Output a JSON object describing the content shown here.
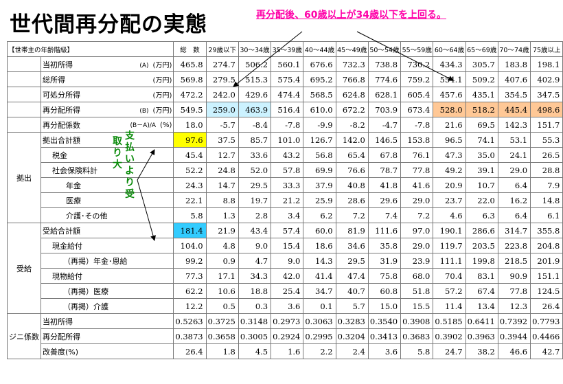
{
  "title": "世代間再分配の実態",
  "note": "再分配後、60歳以上が34歳以下を上回る。",
  "annotation_pay": "支払いより受",
  "annotation_large": "取り大",
  "header": {
    "label": "【世帯主の年齢階級】",
    "total": "総　数",
    "ages": [
      "29歳以下",
      "30～34歳",
      "35～39歳",
      "40～44歳",
      "45～49歳",
      "50～54歳",
      "55～59歳",
      "60～64歳",
      "65～69歳",
      "70～74歳",
      "75歳以上"
    ]
  },
  "sections": {
    "kyoshutsu": "拠出",
    "jukyu": "受給",
    "gini": "ジニ係数"
  },
  "rows": [
    {
      "label": "当初所得",
      "mark": "(A)",
      "unit": "(万円)",
      "total": "465.8",
      "values": [
        "274.7",
        "506.2",
        "560.1",
        "676.6",
        "732.3",
        "738.8",
        "730.2",
        "434.3",
        "305.7",
        "183.8",
        "198.1"
      ]
    },
    {
      "label": "総所得",
      "mark": "",
      "unit": "(万円)",
      "total": "569.8",
      "values": [
        "279.5",
        "515.3",
        "575.4",
        "695.2",
        "766.8",
        "774.6",
        "759.2",
        "554.1",
        "509.2",
        "407.6",
        "402.9"
      ]
    },
    {
      "label": "可処分所得",
      "mark": "",
      "unit": "(万円)",
      "total": "472.2",
      "values": [
        "242.0",
        "429.6",
        "474.4",
        "568.5",
        "624.8",
        "628.1",
        "605.4",
        "457.6",
        "435.1",
        "354.5",
        "347.5"
      ]
    },
    {
      "label": "再分配所得",
      "mark": "(B)",
      "unit": "(万円)",
      "total": "549.5",
      "values": [
        "259.0",
        "463.9",
        "516.4",
        "610.0",
        "672.2",
        "703.9",
        "673.4",
        "528.0",
        "518.2",
        "445.4",
        "498.6"
      ]
    },
    {
      "label": "再分配係数",
      "mark": "(B－A)/A",
      "unit": "(%)",
      "total": "18.0",
      "values": [
        "-5.7",
        "-8.4",
        "-7.8",
        "-9.9",
        "-8.2",
        "-4.7",
        "-7.8",
        "21.6",
        "69.5",
        "142.3",
        "151.7"
      ]
    },
    {
      "label": "拠出合計額",
      "mark": "",
      "unit": "",
      "total": "97.6",
      "values": [
        "37.5",
        "85.7",
        "101.0",
        "126.7",
        "142.0",
        "146.5",
        "153.8",
        "96.5",
        "74.1",
        "53.1",
        "55.3"
      ]
    },
    {
      "label": "税金",
      "mark": "",
      "unit": "",
      "total": "45.4",
      "values": [
        "12.7",
        "33.6",
        "43.2",
        "56.8",
        "65.4",
        "67.8",
        "76.1",
        "47.3",
        "35.0",
        "24.1",
        "26.5"
      ]
    },
    {
      "label": "社会保険料計",
      "mark": "",
      "unit": "",
      "total": "52.2",
      "values": [
        "24.8",
        "52.0",
        "57.8",
        "69.9",
        "76.6",
        "78.7",
        "77.8",
        "49.2",
        "39.1",
        "29.0",
        "28.8"
      ]
    },
    {
      "label": "年金",
      "mark": "",
      "unit": "",
      "total": "24.3",
      "values": [
        "14.7",
        "29.5",
        "33.3",
        "37.9",
        "40.8",
        "41.8",
        "41.6",
        "20.9",
        "10.7",
        "6.4",
        "7.9"
      ]
    },
    {
      "label": "医療",
      "mark": "",
      "unit": "",
      "total": "22.1",
      "values": [
        "8.8",
        "19.7",
        "21.2",
        "25.9",
        "28.6",
        "29.6",
        "29.0",
        "23.7",
        "22.0",
        "16.2",
        "14.8"
      ]
    },
    {
      "label": "介護･その他",
      "mark": "",
      "unit": "",
      "total": "5.8",
      "values": [
        "1.3",
        "2.8",
        "3.4",
        "6.2",
        "7.2",
        "7.4",
        "7.2",
        "4.6",
        "6.3",
        "6.4",
        "6.1"
      ]
    },
    {
      "label": "受給合計額",
      "mark": "",
      "unit": "",
      "total": "181.4",
      "values": [
        "21.9",
        "43.4",
        "57.4",
        "60.0",
        "81.9",
        "111.6",
        "97.0",
        "190.1",
        "286.6",
        "314.7",
        "355.8"
      ]
    },
    {
      "label": "現金給付",
      "mark": "",
      "unit": "",
      "total": "104.0",
      "values": [
        "4.8",
        "9.0",
        "15.4",
        "18.6",
        "34.6",
        "35.8",
        "29.0",
        "119.7",
        "203.5",
        "223.8",
        "204.8"
      ]
    },
    {
      "label": "（再掲）年金･恩給",
      "mark": "",
      "unit": "",
      "total": "99.2",
      "values": [
        "0.9",
        "4.7",
        "9.0",
        "14.3",
        "29.5",
        "31.9",
        "23.9",
        "111.1",
        "199.8",
        "218.5",
        "201.9"
      ]
    },
    {
      "label": "現物給付",
      "mark": "",
      "unit": "",
      "total": "77.3",
      "values": [
        "17.1",
        "34.3",
        "42.0",
        "41.4",
        "47.4",
        "75.8",
        "68.0",
        "70.4",
        "83.1",
        "90.9",
        "151.1"
      ]
    },
    {
      "label": "（再掲）医療",
      "mark": "",
      "unit": "",
      "total": "62.2",
      "values": [
        "10.6",
        "18.8",
        "25.4",
        "34.7",
        "40.7",
        "60.8",
        "51.8",
        "57.2",
        "67.4",
        "77.8",
        "124.5"
      ]
    },
    {
      "label": "（再掲）介護",
      "mark": "",
      "unit": "",
      "total": "12.2",
      "values": [
        "0.5",
        "0.3",
        "3.6",
        "0.1",
        "5.7",
        "15.0",
        "15.5",
        "11.4",
        "13.4",
        "12.3",
        "26.4"
      ]
    },
    {
      "label": "当初所得",
      "mark": "",
      "unit": "",
      "total": "0.5263",
      "values": [
        "0.3725",
        "0.3148",
        "0.2973",
        "0.3063",
        "0.3283",
        "0.3540",
        "0.3908",
        "0.5185",
        "0.6411",
        "0.7392",
        "0.7793"
      ]
    },
    {
      "label": "再分配所得",
      "mark": "",
      "unit": "",
      "total": "0.3873",
      "values": [
        "0.3658",
        "0.3005",
        "0.2924",
        "0.2995",
        "0.3204",
        "0.3413",
        "0.3683",
        "0.3902",
        "0.3963",
        "0.3944",
        "0.4466"
      ]
    },
    {
      "label": "改善度(%)",
      "mark": "",
      "unit": "",
      "total": "26.4",
      "values": [
        "1.8",
        "4.5",
        "1.6",
        "2.2",
        "2.4",
        "3.6",
        "5.8",
        "24.7",
        "38.2",
        "46.6",
        "42.7"
      ]
    }
  ]
}
